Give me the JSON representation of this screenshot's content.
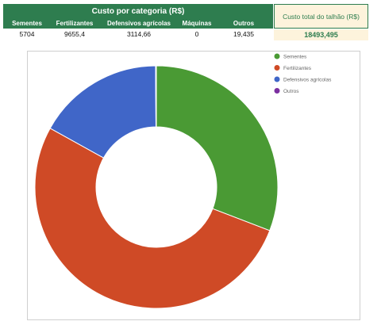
{
  "table": {
    "title": "Custo por categoria (R$)",
    "columns": [
      "Sementes",
      "Fertilizantes",
      "Defensivos agrícolas",
      "Máquinas",
      "Outros"
    ],
    "values": [
      "5704",
      "9655,4",
      "3114,66",
      "0",
      "19,435"
    ],
    "total_label": "Custo total do talhão (R$)",
    "total_value": "18493,495"
  },
  "colors": {
    "header_bg": "#2e7d4f",
    "total_bg": "#fdf3dc",
    "Sementes": "#4a9a34",
    "Fertilizantes": "#cf4a26",
    "Defensivos agrícolas": "#4066c8",
    "Outros": "#7b2fa0"
  },
  "chart_data": {
    "type": "pie",
    "donut": true,
    "categories": [
      "Sementes",
      "Fertilizantes",
      "Defensivos agrícolas",
      "Máquinas",
      "Outros"
    ],
    "values": [
      5704,
      9655.4,
      3114.66,
      0,
      19.435
    ],
    "legend": [
      "Sementes",
      "Fertilizantes",
      "Defensivos agrícolas",
      "Outros"
    ],
    "legend_position": "top-right"
  }
}
